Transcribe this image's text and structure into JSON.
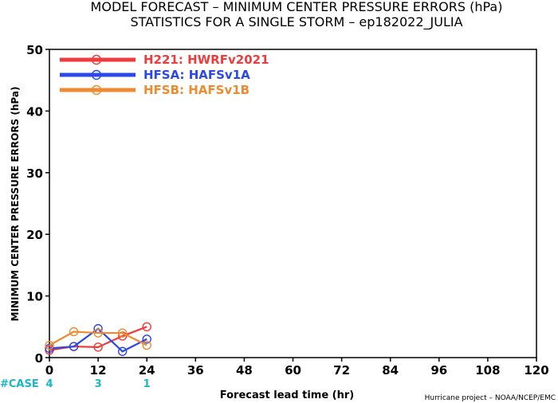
{
  "chart_data": {
    "type": "line",
    "title_line1": "MODEL FORECAST – MINIMUM CENTER PRESSURE ERRORS (hPa)",
    "title_line2": "STATISTICS FOR A SINGLE STORM – ep182022_JULIA",
    "ylabel": "MINIMUM CENTER PRESSURE ERRORS (hPa)",
    "xlabel": "Forecast lead time (hr)",
    "credit": "Hurricane project – NOAA/NCEP/EMC",
    "xlim": [
      0,
      120
    ],
    "ylim": [
      0,
      50
    ],
    "xticks": [
      "0",
      "12",
      "24",
      "36",
      "48",
      "60",
      "72",
      "84",
      "96",
      "108",
      "120"
    ],
    "yticks": [
      "0",
      "10",
      "20",
      "30",
      "40",
      "50"
    ],
    "legend_position": "top-left",
    "series": [
      {
        "name": "H221: HWRFv2021",
        "color": "#ef3b3b",
        "x": [
          0,
          6,
          12,
          18,
          24
        ],
        "y": [
          1.2,
          1.8,
          1.7,
          3.5,
          5.0
        ]
      },
      {
        "name": "HFSA: HAFSv1A",
        "color": "#2b48e8",
        "x": [
          0,
          6,
          12,
          18,
          24
        ],
        "y": [
          1.5,
          1.8,
          4.7,
          1.0,
          3.0
        ]
      },
      {
        "name": "HFSB: HAFSv1B",
        "color": "#f08a30",
        "x": [
          0,
          6,
          12,
          18,
          24
        ],
        "y": [
          2.0,
          4.2,
          4.0,
          4.0,
          2.0
        ]
      }
    ],
    "case_label": "#CASE",
    "case_color": "#18b8c8",
    "cases": [
      {
        "x": 0,
        "count": "4"
      },
      {
        "x": 12,
        "count": "3"
      },
      {
        "x": 24,
        "count": "1"
      }
    ]
  }
}
